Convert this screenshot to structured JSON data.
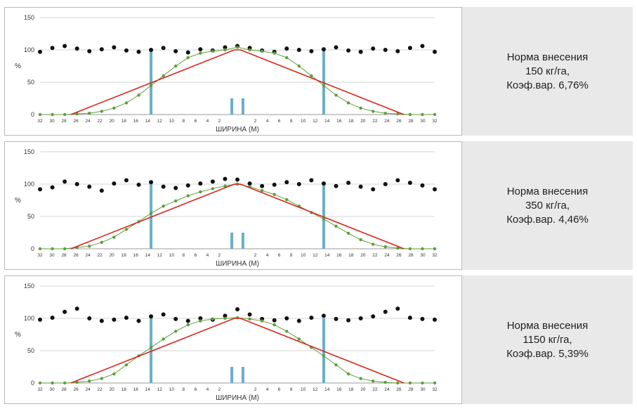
{
  "chart_data": [
    {
      "type": "scatter",
      "xlabel": "ШИРИНА (М)",
      "ylabel": "%",
      "ylim": [
        0,
        150
      ],
      "y_ticks": [
        0,
        50,
        100,
        150
      ],
      "x_tick_labels": [
        "32",
        "30",
        "28",
        "26",
        "24",
        "22",
        "20",
        "18",
        "16",
        "14",
        "12",
        "10",
        "8",
        "6",
        "4",
        "2",
        "",
        "",
        "2",
        "4",
        "6",
        "8",
        "10",
        "12",
        "14",
        "16",
        "18",
        "20",
        "22",
        "24",
        "26",
        "28",
        "30",
        "32"
      ],
      "xlim": [
        -32,
        32
      ],
      "grid": true,
      "series": [
        {
          "role": "overlap-total",
          "color": "#111111",
          "x": [
            -32,
            -30,
            -28,
            -26,
            -24,
            -22,
            -20,
            -18,
            -16,
            -14,
            -12,
            -10,
            -8,
            -6,
            -4,
            -2,
            0,
            2,
            4,
            6,
            8,
            10,
            12,
            14,
            16,
            18,
            20,
            22,
            24,
            26,
            28,
            30,
            32
          ],
          "values": [
            97,
            103,
            106,
            102,
            98,
            101,
            104,
            99,
            97,
            100,
            103,
            98,
            96,
            101,
            99,
            104,
            106,
            103,
            99,
            97,
            102,
            100,
            98,
            101,
            104,
            99,
            97,
            102,
            100,
            98,
            103,
            106,
            97
          ]
        },
        {
          "role": "single-pass",
          "color": "#5e9e3a",
          "x": [
            -32,
            -30,
            -28,
            -26,
            -24,
            -22,
            -20,
            -18,
            -16,
            -14,
            -12,
            -10,
            -8,
            -6,
            -4,
            -2,
            0,
            2,
            4,
            6,
            8,
            10,
            12,
            14,
            16,
            18,
            20,
            22,
            24,
            26,
            28,
            30,
            32
          ],
          "values": [
            0,
            0,
            0,
            1,
            2,
            5,
            10,
            18,
            30,
            45,
            60,
            75,
            88,
            95,
            98,
            100,
            104,
            100,
            98,
            95,
            88,
            75,
            60,
            45,
            30,
            18,
            10,
            5,
            2,
            1,
            0,
            0,
            0
          ]
        },
        {
          "role": "theoretical",
          "color": "#d9261c",
          "x": [
            -27,
            -0.5,
            0.5,
            27
          ],
          "values": [
            0,
            100,
            100,
            0
          ]
        }
      ],
      "markers": [
        {
          "color": "#6aaec9",
          "x": -14,
          "height": 100
        },
        {
          "color": "#6aaec9",
          "x": 14,
          "height": 100
        },
        {
          "color": "#6aaec9",
          "x": -0.9,
          "height": 25
        },
        {
          "color": "#6aaec9",
          "x": 0.9,
          "height": 25
        }
      ],
      "caption": {
        "line1": "Норма внесения",
        "line2": "150 кг/га,",
        "line3": "Коэф.вар. 6,76%"
      }
    },
    {
      "type": "scatter",
      "xlabel": "ШИРИНА (М)",
      "ylabel": "%",
      "ylim": [
        0,
        150
      ],
      "y_ticks": [
        0,
        50,
        100,
        150
      ],
      "x_tick_labels": [
        "32",
        "30",
        "28",
        "26",
        "24",
        "22",
        "20",
        "18",
        "16",
        "14",
        "12",
        "10",
        "8",
        "6",
        "4",
        "2",
        "",
        "",
        "2",
        "4",
        "6",
        "8",
        "10",
        "12",
        "14",
        "16",
        "18",
        "20",
        "22",
        "24",
        "26",
        "28",
        "30",
        "32"
      ],
      "xlim": [
        -32,
        32
      ],
      "grid": true,
      "series": [
        {
          "role": "overlap-total",
          "color": "#111111",
          "x": [
            -32,
            -30,
            -28,
            -26,
            -24,
            -22,
            -20,
            -18,
            -16,
            -14,
            -12,
            -10,
            -8,
            -6,
            -4,
            -2,
            0,
            2,
            4,
            6,
            8,
            10,
            12,
            14,
            16,
            18,
            20,
            22,
            24,
            26,
            28,
            30,
            32
          ],
          "values": [
            92,
            95,
            104,
            100,
            96,
            90,
            101,
            106,
            99,
            103,
            96,
            94,
            98,
            101,
            104,
            108,
            107,
            101,
            97,
            99,
            103,
            100,
            106,
            101,
            97,
            102,
            96,
            92,
            100,
            106,
            102,
            98,
            92
          ]
        },
        {
          "role": "single-pass",
          "color": "#5e9e3a",
          "x": [
            -32,
            -30,
            -28,
            -26,
            -24,
            -22,
            -20,
            -18,
            -16,
            -14,
            -12,
            -10,
            -8,
            -6,
            -4,
            -2,
            0,
            2,
            4,
            6,
            8,
            10,
            12,
            14,
            16,
            18,
            20,
            22,
            24,
            26,
            28,
            30,
            32
          ],
          "values": [
            0,
            0,
            0,
            2,
            4,
            10,
            18,
            30,
            42,
            55,
            66,
            74,
            82,
            88,
            93,
            97,
            100,
            96,
            90,
            84,
            76,
            66,
            56,
            46,
            35,
            24,
            14,
            7,
            3,
            1,
            0,
            0,
            0
          ]
        },
        {
          "role": "theoretical",
          "color": "#d9261c",
          "x": [
            -27,
            -0.5,
            0.5,
            27
          ],
          "values": [
            0,
            100,
            100,
            0
          ]
        }
      ],
      "markers": [
        {
          "color": "#6aaec9",
          "x": -14,
          "height": 100
        },
        {
          "color": "#6aaec9",
          "x": 14,
          "height": 100
        },
        {
          "color": "#6aaec9",
          "x": -0.9,
          "height": 25
        },
        {
          "color": "#6aaec9",
          "x": 0.9,
          "height": 25
        }
      ],
      "caption": {
        "line1": "Норма внесения",
        "line2": "350 кг/га,",
        "line3": "Коэф.вар. 4,46%"
      }
    },
    {
      "type": "scatter",
      "xlabel": "ШИРИНА (М)",
      "ylabel": "%",
      "ylim": [
        0,
        150
      ],
      "y_ticks": [
        0,
        50,
        100,
        150
      ],
      "x_tick_labels": [
        "32",
        "30",
        "28",
        "26",
        "24",
        "22",
        "20",
        "18",
        "16",
        "14",
        "12",
        "10",
        "8",
        "6",
        "4",
        "2",
        "",
        "",
        "2",
        "4",
        "6",
        "8",
        "10",
        "12",
        "14",
        "16",
        "18",
        "20",
        "22",
        "24",
        "26",
        "28",
        "30",
        "32"
      ],
      "xlim": [
        -32,
        32
      ],
      "grid": true,
      "series": [
        {
          "role": "overlap-total",
          "color": "#111111",
          "x": [
            -32,
            -30,
            -28,
            -26,
            -24,
            -22,
            -20,
            -18,
            -16,
            -14,
            -12,
            -10,
            -8,
            -6,
            -4,
            -2,
            0,
            2,
            4,
            6,
            8,
            10,
            12,
            14,
            16,
            18,
            20,
            22,
            24,
            26,
            28,
            30,
            32
          ],
          "values": [
            98,
            101,
            110,
            115,
            100,
            96,
            98,
            101,
            96,
            103,
            106,
            99,
            96,
            100,
            98,
            104,
            114,
            106,
            99,
            97,
            100,
            96,
            101,
            104,
            99,
            97,
            100,
            103,
            110,
            115,
            101,
            99,
            98
          ]
        },
        {
          "role": "single-pass",
          "color": "#5e9e3a",
          "x": [
            -32,
            -30,
            -28,
            -26,
            -24,
            -22,
            -20,
            -18,
            -16,
            -14,
            -12,
            -10,
            -8,
            -6,
            -4,
            -2,
            0,
            2,
            4,
            6,
            8,
            10,
            12,
            14,
            16,
            18,
            20,
            22,
            24,
            26,
            28,
            30,
            32
          ],
          "values": [
            0,
            0,
            0,
            1,
            3,
            7,
            14,
            28,
            42,
            55,
            68,
            80,
            90,
            96,
            99,
            100,
            101,
            99,
            96,
            90,
            80,
            68,
            55,
            42,
            28,
            14,
            7,
            3,
            1,
            0,
            0,
            0,
            0
          ]
        },
        {
          "role": "theoretical",
          "color": "#d9261c",
          "x": [
            -27,
            -0.5,
            0.5,
            27
          ],
          "values": [
            0,
            100,
            100,
            0
          ]
        }
      ],
      "markers": [
        {
          "color": "#6aaec9",
          "x": -14,
          "height": 100
        },
        {
          "color": "#6aaec9",
          "x": 14,
          "height": 100
        },
        {
          "color": "#6aaec9",
          "x": -0.9,
          "height": 25
        },
        {
          "color": "#6aaec9",
          "x": 0.9,
          "height": 25
        }
      ],
      "caption": {
        "line1": "Норма внесения",
        "line2": "1150 кг/га,",
        "line3": "Коэф.вар. 5,39%"
      }
    }
  ]
}
